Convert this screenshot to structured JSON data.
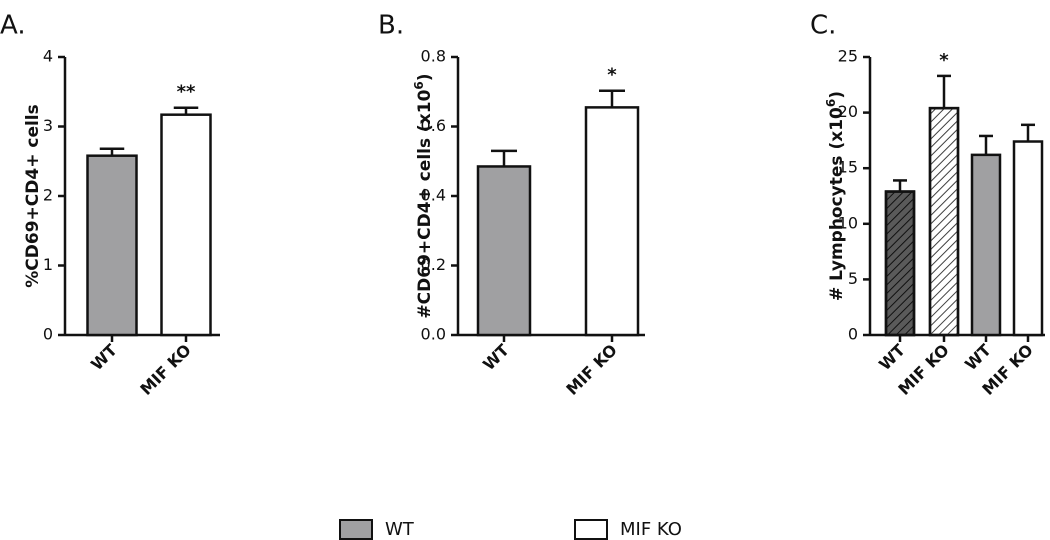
{
  "chart_data": [
    {
      "type": "bar",
      "panel_label": "A.",
      "ylabel": "%CD69+CD4+ cells",
      "categories": [
        "WT",
        "MIF KO"
      ],
      "values": [
        2.58,
        3.17
      ],
      "errors": [
        0.1,
        0.1
      ],
      "colors": [
        "#a0a0a2",
        "#ffffff"
      ],
      "hatch": [
        false,
        false
      ],
      "value_annotations": [
        null,
        "**"
      ],
      "ylim": [
        0,
        4
      ],
      "yticks": [
        0,
        1,
        2,
        3,
        4
      ]
    },
    {
      "type": "bar",
      "panel_label": "B.",
      "ylabel": "#CD69+CD4+ cells (x10",
      "ylabel_sup": "6",
      "ylabel_end": ")",
      "categories": [
        "WT",
        "MIF KO"
      ],
      "values": [
        0.485,
        0.655
      ],
      "errors": [
        0.045,
        0.048
      ],
      "colors": [
        "#a0a0a2",
        "#ffffff"
      ],
      "hatch": [
        false,
        false
      ],
      "value_annotations": [
        null,
        "*"
      ],
      "ylim": [
        0,
        0.8
      ],
      "yticks": [
        {
          "value": 0,
          "label": "0.0"
        },
        0.2,
        0.4,
        0.6,
        0.8
      ]
    },
    {
      "type": "bar",
      "panel_label": "C.",
      "ylabel": "# Lymphocytes (x10",
      "ylabel_sup": "6",
      "ylabel_end": ")",
      "categories": [
        "WT",
        "MIF KO",
        "WT",
        "MIF KO"
      ],
      "values": [
        12.9,
        20.4,
        16.2,
        17.4
      ],
      "errors": [
        1.0,
        2.9,
        1.7,
        1.5
      ],
      "colors": [
        "#5a5a5a",
        "#ffffff",
        "#a0a0a2",
        "#ffffff"
      ],
      "hatch": [
        true,
        true,
        false,
        false
      ],
      "value_annotations": [
        null,
        "*",
        null,
        null
      ],
      "ylim": [
        0,
        25
      ],
      "yticks": [
        0,
        5,
        10,
        15,
        20,
        25
      ]
    }
  ],
  "legend": {
    "entries": [
      {
        "name": "WT",
        "color": "#a0a0a2"
      },
      {
        "name": "MIF KO",
        "color": "#ffffff"
      }
    ]
  }
}
